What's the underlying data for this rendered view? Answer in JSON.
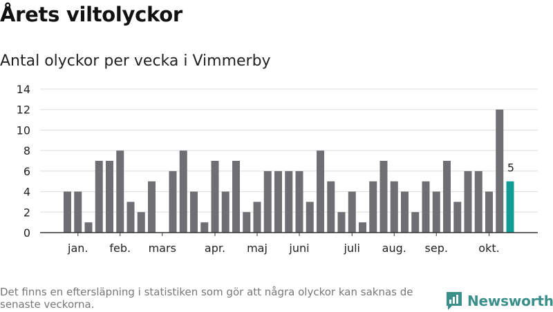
{
  "title": "Årets viltolyckor",
  "subtitle": "Antal olyckor per vecka i Vimmerby",
  "footnote": "Det finns en eftersläpning i statistiken som gör att några olyckor kan saknas de senaste veckorna.",
  "brand": {
    "name": "Newsworthy",
    "logo_icon": "bar-chart-logo-icon"
  },
  "colors": {
    "bar": "#6f6e73",
    "highlight": "#129c94",
    "grid": "#dddddd",
    "axis": "#333333",
    "brand": "#3a8f8a"
  },
  "chart_data": {
    "type": "bar",
    "values": [
      4,
      4,
      1,
      7,
      7,
      8,
      3,
      2,
      5,
      0,
      6,
      8,
      4,
      1,
      7,
      4,
      7,
      2,
      3,
      6,
      6,
      6,
      6,
      3,
      8,
      5,
      2,
      4,
      1,
      5,
      7,
      5,
      4,
      2,
      5,
      4,
      7,
      3,
      6,
      6,
      4,
      12,
      5
    ],
    "highlight_last": true,
    "data_labels": [
      {
        "index": 42,
        "text": "5"
      }
    ],
    "ylim": [
      0,
      14
    ],
    "yticks": [
      0,
      2,
      4,
      6,
      8,
      10,
      12,
      14
    ],
    "month_labels": [
      {
        "label": "jan.",
        "pos": 1
      },
      {
        "label": "feb.",
        "pos": 5
      },
      {
        "label": "mars",
        "pos": 9
      },
      {
        "label": "apr.",
        "pos": 14
      },
      {
        "label": "maj",
        "pos": 18
      },
      {
        "label": "juni",
        "pos": 22
      },
      {
        "label": "juli",
        "pos": 27
      },
      {
        "label": "aug.",
        "pos": 31
      },
      {
        "label": "sep.",
        "pos": 35
      },
      {
        "label": "okt.",
        "pos": 40
      }
    ],
    "xlabel": "",
    "ylabel": "",
    "grid": true
  }
}
